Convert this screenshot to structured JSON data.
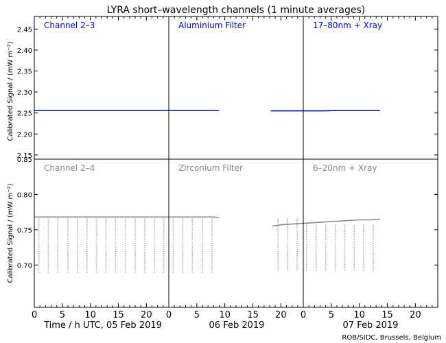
{
  "chart_data": {
    "type": "line",
    "title": "LYRA short–wavelength channels (1 minute averages)",
    "ylabel": "Calibrated Signal / (mW m⁻²)",
    "xlabel": "Time / h UTC, 05 Feb 2019",
    "credit": "ROB/SIDC, Brussels, Belgium",
    "x_ticks": [
      "0",
      "5",
      "10",
      "15",
      "20"
    ],
    "day_labels": [
      "Time / h UTC, 05 Feb 2019",
      "06 Feb 2019",
      "07 Feb 2019"
    ],
    "panels": [
      {
        "row": "top",
        "ylim": [
          2.14,
          2.48
        ],
        "yticks": [
          "2.15",
          "2.20",
          "2.25",
          "2.30",
          "2.35",
          "2.40",
          "2.45"
        ],
        "ytick_values": [
          2.15,
          2.2,
          2.25,
          2.3,
          2.35,
          2.4,
          2.45
        ],
        "color": "#0000cc",
        "series": [
          {
            "name": "Channel 2–3",
            "day": 1,
            "x": [
              0,
              2,
              4,
              6,
              8,
              10,
              12,
              14,
              16,
              18,
              20,
              22,
              24
            ],
            "y": [
              2.256,
              2.256,
              2.256,
              2.256,
              2.256,
              2.256,
              2.256,
              2.256,
              2.256,
              2.256,
              2.256,
              2.256,
              2.256
            ]
          },
          {
            "name": "Aluminium Filter",
            "day": 2,
            "x": [
              0,
              2,
              4,
              6,
              8,
              9
            ],
            "y": [
              2.256,
              2.256,
              2.256,
              2.256,
              2.256,
              2.256
            ]
          },
          {
            "name": "",
            "day": 2,
            "x": [
              18.2,
              20,
              22,
              24
            ],
            "y": [
              2.255,
              2.255,
              2.255,
              2.255
            ]
          },
          {
            "name": "17–80nm + Xray",
            "day": 3,
            "x": [
              0,
              2,
              4,
              6,
              8,
              10,
              12,
              13.7
            ],
            "y": [
              2.255,
              2.255,
              2.255,
              2.256,
              2.256,
              2.256,
              2.256,
              2.256
            ]
          }
        ]
      },
      {
        "row": "bottom",
        "ylim": [
          0.64,
          0.85
        ],
        "yticks": [
          "0.70",
          "0.75",
          "0.80",
          "0.85"
        ],
        "ytick_values": [
          0.7,
          0.75,
          0.8,
          0.85
        ],
        "color": "#888888",
        "series": [
          {
            "name": "Channel 2–4",
            "day": 1,
            "x": [
              0,
              2,
              4,
              6,
              8,
              10,
              12,
              14,
              16,
              18,
              20,
              22,
              24
            ],
            "y": [
              0.768,
              0.768,
              0.768,
              0.768,
              0.768,
              0.768,
              0.768,
              0.768,
              0.768,
              0.768,
              0.768,
              0.768,
              0.768
            ]
          },
          {
            "name": "Zirconium Filter",
            "day": 2,
            "x": [
              0,
              2,
              4,
              6,
              8,
              9
            ],
            "y": [
              0.768,
              0.768,
              0.768,
              0.768,
              0.768,
              0.767
            ]
          },
          {
            "name": "",
            "day": 2,
            "x": [
              18.5,
              20,
              22,
              24
            ],
            "y": [
              0.755,
              0.757,
              0.758,
              0.759
            ]
          },
          {
            "name": "6–20nm + Xray",
            "day": 3,
            "x": [
              0,
              2,
              4,
              6,
              8,
              10,
              12,
              13.7
            ],
            "y": [
              0.759,
              0.76,
              0.761,
              0.762,
              0.763,
              0.764,
              0.764,
              0.765
            ]
          }
        ],
        "dips": [
          {
            "day": 1,
            "x": [
              0.8,
              2.5,
              4.2,
              6,
              7.7,
              9.4,
              11.1,
              12.8,
              14.5,
              16.3,
              18,
              19.7,
              21.4,
              23.1
            ],
            "min": 0.688
          },
          {
            "day": 2,
            "x": [
              0.8,
              2.5,
              4.2,
              6,
              7.7
            ],
            "min": 0.688
          },
          {
            "day": 2,
            "x": [
              19.5,
              21.2,
              22.9
            ],
            "min": 0.69
          },
          {
            "day": 3,
            "x": [
              0.6,
              2.3,
              4,
              5.7,
              7.4,
              9.1,
              10.8,
              12.5
            ],
            "min": 0.69
          }
        ]
      }
    ]
  }
}
